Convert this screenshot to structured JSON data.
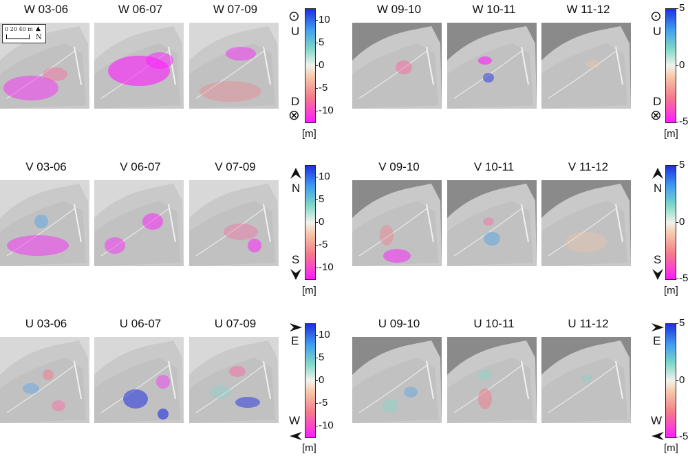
{
  "rows": [
    {
      "titles_left": [
        "W 03-06",
        "W 06-07",
        "W 07-09"
      ],
      "titles_right": [
        "W 09-10",
        "W 10-11",
        "W 11-12"
      ]
    },
    {
      "titles_left": [
        "V 03-06",
        "V 06-07",
        "V 07-09"
      ],
      "titles_right": [
        "V 09-10",
        "V 10-11",
        "V 11-12"
      ]
    },
    {
      "titles_left": [
        "U 03-06",
        "U 06-07",
        "U 07-09"
      ],
      "titles_right": [
        "U 09-10",
        "U 10-11",
        "U 11-12"
      ]
    }
  ],
  "colorbars": {
    "left_ticks": [
      "10",
      "5",
      "0",
      "-5",
      "-10"
    ],
    "right_ticks": [
      "5",
      "0",
      "-5"
    ],
    "unit": "[m]",
    "row1": {
      "top": "U",
      "bottom": "D",
      "top_symbol": "⊙",
      "bottom_symbol": "⊗"
    },
    "row2": {
      "top": "N",
      "bottom": "S"
    },
    "row3": {
      "top": "E",
      "bottom": "W"
    }
  },
  "scale": {
    "label": "0 20 40 m",
    "north": "N"
  },
  "colors": {
    "positive": "#1f2fe0",
    "negative": "#ff1bff",
    "neutral": "#f2f2ec",
    "terrain": "#c9c9c9",
    "nodata": "#8a8a8a"
  }
}
